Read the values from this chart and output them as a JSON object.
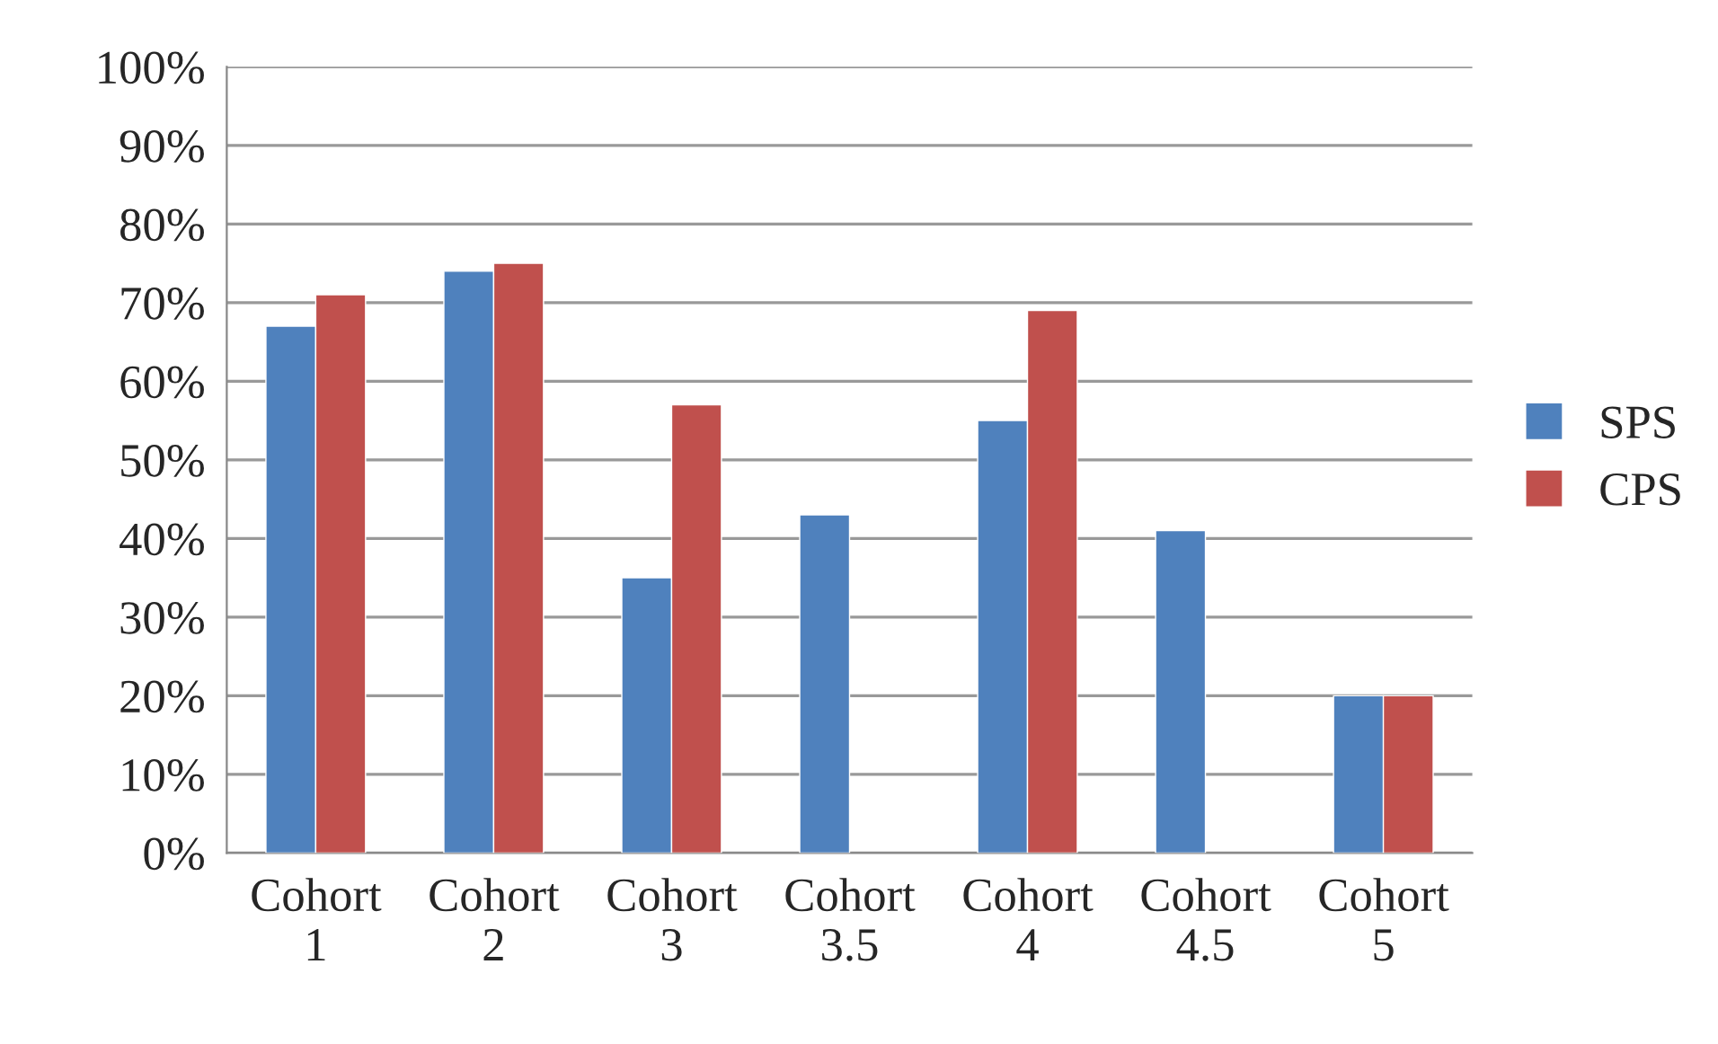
{
  "chart_data": {
    "type": "bar",
    "categories": [
      "Cohort\n1",
      "Cohort\n2",
      "Cohort\n3",
      "Cohort\n3.5",
      "Cohort\n4",
      "Cohort\n4.5",
      "Cohort\n5"
    ],
    "series": [
      {
        "name": "SPS",
        "color": "#4f81bd",
        "values": [
          67,
          74,
          35,
          43,
          55,
          41,
          20
        ]
      },
      {
        "name": "CPS",
        "color": "#c0504d",
        "values": [
          71,
          75,
          57,
          null,
          69,
          null,
          20
        ]
      }
    ],
    "ylim": [
      0,
      100
    ],
    "yticks": [
      {
        "value": 0,
        "label": "0%"
      },
      {
        "value": 10,
        "label": "10%"
      },
      {
        "value": 20,
        "label": "20%"
      },
      {
        "value": 30,
        "label": "30%"
      },
      {
        "value": 40,
        "label": "40%"
      },
      {
        "value": 50,
        "label": "50%"
      },
      {
        "value": 60,
        "label": "60%"
      },
      {
        "value": 70,
        "label": "70%"
      },
      {
        "value": 80,
        "label": "80%"
      },
      {
        "value": 90,
        "label": "90%"
      },
      {
        "value": 100,
        "label": "100%"
      }
    ],
    "grid": "y",
    "legend": "right"
  }
}
